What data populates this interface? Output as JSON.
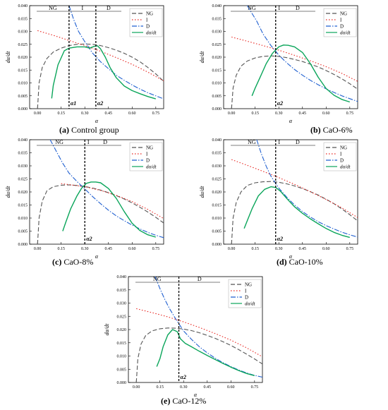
{
  "colors": {
    "ng": "#555555",
    "i": "#e8241f",
    "d": "#1f5fd0",
    "rate": "#0aa55a"
  },
  "panels": [
    {
      "caption_letter": "(a)",
      "caption_text": "Control group",
      "alpha_labels": [
        "α1",
        "α2"
      ]
    },
    {
      "caption_letter": "(b)",
      "caption_text": "CaO-6%",
      "alpha_labels": [
        "α2"
      ]
    },
    {
      "caption_letter": "(c)",
      "caption_text": "CaO-8%",
      "alpha_labels": [
        "α2"
      ]
    },
    {
      "caption_letter": "(d)",
      "caption_text": "CaO-10%",
      "alpha_labels": [
        "α2"
      ]
    },
    {
      "caption_letter": "(e)",
      "caption_text": "CaO-12%",
      "alpha_labels": [
        "α2"
      ]
    }
  ],
  "chart_data": [
    {
      "type": "line",
      "xlabel": "α",
      "ylabel": "dα/dt",
      "xlim": [
        -0.05,
        0.8
      ],
      "ylim": [
        0,
        0.04
      ],
      "xticks": [
        "0.00",
        "0.15",
        "0.30",
        "0.45",
        "0.60",
        "0.75"
      ],
      "yticks": [
        "0.000",
        "0.005",
        "0.010",
        "0.015",
        "0.020",
        "0.025",
        "0.030",
        "0.035",
        "0.040"
      ],
      "regions": [
        "NG",
        "I",
        "D"
      ],
      "dividers": [
        0.2,
        0.37
      ],
      "series": [
        {
          "name": "NG",
          "x": [
            0.0,
            0.01,
            0.03,
            0.06,
            0.1,
            0.15,
            0.2,
            0.25,
            0.3,
            0.35,
            0.4,
            0.45,
            0.5,
            0.55,
            0.6,
            0.65,
            0.7,
            0.75,
            0.8
          ],
          "y": [
            0.0,
            0.01,
            0.016,
            0.0195,
            0.022,
            0.0235,
            0.0245,
            0.025,
            0.0251,
            0.025,
            0.0245,
            0.0237,
            0.0227,
            0.0215,
            0.02,
            0.0182,
            0.016,
            0.0135,
            0.0106
          ]
        },
        {
          "name": "I",
          "x": [
            0.0,
            0.1,
            0.2,
            0.3,
            0.4,
            0.5,
            0.6,
            0.7,
            0.8
          ],
          "y": [
            0.0303,
            0.0285,
            0.0265,
            0.0245,
            0.0223,
            0.0198,
            0.0172,
            0.0142,
            0.0108
          ]
        },
        {
          "name": "D",
          "x": [
            0.2,
            0.23,
            0.26,
            0.3,
            0.35,
            0.4,
            0.45,
            0.5,
            0.55,
            0.6,
            0.65,
            0.7,
            0.75,
            0.8
          ],
          "y": [
            0.04,
            0.0345,
            0.03,
            0.026,
            0.0215,
            0.0182,
            0.0155,
            0.013,
            0.011,
            0.0092,
            0.0076,
            0.0062,
            0.005,
            0.0038
          ]
        },
        {
          "name": "dα/dt",
          "x": [
            0.09,
            0.1,
            0.13,
            0.17,
            0.2,
            0.25,
            0.3,
            0.33,
            0.36,
            0.38,
            0.4,
            0.43,
            0.46,
            0.5,
            0.55,
            0.6,
            0.65,
            0.7,
            0.75
          ],
          "y": [
            0.004,
            0.009,
            0.017,
            0.0225,
            0.0235,
            0.024,
            0.024,
            0.0235,
            0.0242,
            0.0244,
            0.0232,
            0.02,
            0.016,
            0.012,
            0.0088,
            0.007,
            0.0058,
            0.0047,
            0.0038
          ]
        }
      ]
    },
    {
      "type": "line",
      "xlabel": "α",
      "ylabel": "dα/dt",
      "xlim": [
        -0.05,
        0.8
      ],
      "ylim": [
        0,
        0.04
      ],
      "xticks": [
        "0.00",
        "0.15",
        "0.30",
        "0.45",
        "0.60",
        "0.75"
      ],
      "yticks": [
        "0.000",
        "0.005",
        "0.010",
        "0.015",
        "0.020",
        "0.025",
        "0.030",
        "0.035",
        "0.040"
      ],
      "regions": [
        "NG",
        "I",
        "D"
      ],
      "dividers": [
        0.28
      ],
      "series": [
        {
          "name": "NG",
          "x": [
            0.0,
            0.01,
            0.03,
            0.06,
            0.1,
            0.15,
            0.2,
            0.25,
            0.3,
            0.35,
            0.4,
            0.45,
            0.5,
            0.55,
            0.6,
            0.65,
            0.7,
            0.75,
            0.8
          ],
          "y": [
            0.0,
            0.008,
            0.013,
            0.0165,
            0.0185,
            0.0197,
            0.0203,
            0.0205,
            0.0203,
            0.0198,
            0.0191,
            0.0183,
            0.0173,
            0.0162,
            0.0148,
            0.0133,
            0.0116,
            0.0097,
            0.0076
          ]
        },
        {
          "name": "I",
          "x": [
            0.0,
            0.1,
            0.2,
            0.3,
            0.4,
            0.5,
            0.6,
            0.7,
            0.8
          ],
          "y": [
            0.0278,
            0.0262,
            0.0245,
            0.0227,
            0.0207,
            0.0186,
            0.0163,
            0.0137,
            0.0106
          ]
        },
        {
          "name": "D",
          "x": [
            0.1,
            0.13,
            0.16,
            0.2,
            0.25,
            0.3,
            0.35,
            0.4,
            0.45,
            0.5,
            0.55,
            0.6,
            0.65,
            0.7,
            0.75,
            0.8
          ],
          "y": [
            0.04,
            0.037,
            0.034,
            0.029,
            0.0245,
            0.0208,
            0.0178,
            0.0152,
            0.013,
            0.011,
            0.0093,
            0.0077,
            0.0063,
            0.005,
            0.0039,
            0.0028
          ]
        },
        {
          "name": "dα/dt",
          "x": [
            0.13,
            0.15,
            0.18,
            0.22,
            0.26,
            0.3,
            0.33,
            0.36,
            0.4,
            0.45,
            0.5,
            0.55,
            0.6,
            0.65,
            0.7,
            0.75
          ],
          "y": [
            0.005,
            0.008,
            0.012,
            0.0175,
            0.0215,
            0.024,
            0.0247,
            0.0246,
            0.024,
            0.0218,
            0.0175,
            0.0122,
            0.0078,
            0.0052,
            0.0036,
            0.0026
          ]
        }
      ]
    },
    {
      "type": "line",
      "xlabel": "α",
      "ylabel": "dα/dt",
      "xlim": [
        -0.05,
        0.8
      ],
      "ylim": [
        0,
        0.04
      ],
      "xticks": [
        "0.00",
        "0.15",
        "0.30",
        "0.45",
        "0.60",
        "0.75"
      ],
      "yticks": [
        "0.000",
        "0.005",
        "0.010",
        "0.015",
        "0.020",
        "0.025",
        "0.030",
        "0.035",
        "0.040"
      ],
      "regions": [
        "NG",
        "I",
        "D"
      ],
      "dividers": [
        0.3
      ],
      "series": [
        {
          "name": "NG",
          "x": [
            0.0,
            0.01,
            0.03,
            0.06,
            0.1,
            0.15,
            0.2,
            0.25,
            0.3,
            0.35,
            0.4,
            0.45,
            0.5,
            0.55,
            0.6,
            0.65,
            0.7,
            0.75,
            0.8
          ],
          "y": [
            0.0,
            0.01,
            0.0165,
            0.0205,
            0.022,
            0.0226,
            0.0227,
            0.0225,
            0.0221,
            0.0215,
            0.0207,
            0.0197,
            0.0186,
            0.0173,
            0.0158,
            0.0141,
            0.0123,
            0.0103,
            0.0081
          ]
        },
        {
          "name": "I",
          "x": [
            0.15,
            0.2,
            0.3,
            0.4,
            0.5,
            0.6,
            0.7,
            0.8
          ],
          "y": [
            0.0232,
            0.0228,
            0.022,
            0.0206,
            0.0187,
            0.0163,
            0.0133,
            0.0098
          ]
        },
        {
          "name": "D",
          "x": [
            0.08,
            0.12,
            0.16,
            0.2,
            0.25,
            0.3,
            0.35,
            0.4,
            0.45,
            0.5,
            0.55,
            0.6,
            0.65,
            0.7,
            0.75,
            0.8
          ],
          "y": [
            0.04,
            0.0355,
            0.031,
            0.0272,
            0.024,
            0.0212,
            0.0182,
            0.0155,
            0.013,
            0.0108,
            0.009,
            0.0073,
            0.0058,
            0.0045,
            0.0034,
            0.0025
          ]
        },
        {
          "name": "dα/dt",
          "x": [
            0.16,
            0.18,
            0.21,
            0.25,
            0.28,
            0.31,
            0.34,
            0.37,
            0.4,
            0.45,
            0.5,
            0.55,
            0.6,
            0.65,
            0.7,
            0.75
          ],
          "y": [
            0.005,
            0.0085,
            0.0135,
            0.0185,
            0.0215,
            0.0233,
            0.0238,
            0.0238,
            0.0235,
            0.0213,
            0.0175,
            0.0125,
            0.008,
            0.0052,
            0.0036,
            0.0027
          ]
        }
      ]
    },
    {
      "type": "line",
      "xlabel": "α",
      "ylabel": "dα/dt",
      "xlim": [
        -0.05,
        0.8
      ],
      "ylim": [
        0,
        0.04
      ],
      "xticks": [
        "0.00",
        "0.15",
        "0.30",
        "0.45",
        "0.60",
        "0.75"
      ],
      "yticks": [
        "0.000",
        "0.005",
        "0.010",
        "0.015",
        "0.020",
        "0.025",
        "0.030",
        "0.035",
        "0.040"
      ],
      "regions": [
        "NG",
        "I",
        "D"
      ],
      "dividers": [
        0.28
      ],
      "series": [
        {
          "name": "NG",
          "x": [
            0.0,
            0.01,
            0.03,
            0.06,
            0.1,
            0.15,
            0.2,
            0.25,
            0.3,
            0.35,
            0.4,
            0.45,
            0.5,
            0.55,
            0.6,
            0.65,
            0.7,
            0.75,
            0.8
          ],
          "y": [
            0.0,
            0.01,
            0.016,
            0.02,
            0.0225,
            0.0235,
            0.0239,
            0.024,
            0.0237,
            0.0231,
            0.0223,
            0.0213,
            0.0201,
            0.0188,
            0.0172,
            0.0155,
            0.0135,
            0.0113,
            0.0089
          ]
        },
        {
          "name": "I",
          "x": [
            0.0,
            0.1,
            0.2,
            0.3,
            0.4,
            0.5,
            0.6,
            0.7,
            0.8
          ],
          "y": [
            0.0324,
            0.0302,
            0.0279,
            0.0255,
            0.0229,
            0.0201,
            0.0171,
            0.0139,
            0.0102
          ]
        },
        {
          "name": "D",
          "x": [
            0.16,
            0.19,
            0.22,
            0.25,
            0.3,
            0.35,
            0.4,
            0.45,
            0.5,
            0.55,
            0.6,
            0.65,
            0.7,
            0.75,
            0.8
          ],
          "y": [
            0.04,
            0.0345,
            0.0298,
            0.026,
            0.0215,
            0.018,
            0.015,
            0.0125,
            0.0104,
            0.0086,
            0.0071,
            0.0058,
            0.0046,
            0.0036,
            0.0027
          ]
        },
        {
          "name": "dα/dt",
          "x": [
            0.08,
            0.1,
            0.13,
            0.17,
            0.21,
            0.25,
            0.28,
            0.31,
            0.35,
            0.4,
            0.45,
            0.5,
            0.55,
            0.6,
            0.65,
            0.7,
            0.75
          ],
          "y": [
            0.006,
            0.009,
            0.0135,
            0.0185,
            0.021,
            0.022,
            0.0217,
            0.0203,
            0.0175,
            0.0143,
            0.0118,
            0.0097,
            0.0078,
            0.006,
            0.0045,
            0.0034,
            0.0026
          ]
        }
      ]
    },
    {
      "type": "line",
      "xlabel": "α",
      "ylabel": "dα/dt",
      "xlim": [
        -0.05,
        0.8
      ],
      "ylim": [
        0,
        0.04
      ],
      "xticks": [
        "0.00",
        "0.15",
        "0.30",
        "0.45",
        "0.60",
        "0.75"
      ],
      "yticks": [
        "0.000",
        "0.005",
        "0.010",
        "0.015",
        "0.020",
        "0.025",
        "0.030",
        "0.035",
        "0.040"
      ],
      "regions": [
        "NG",
        "D"
      ],
      "dividers": [
        0.27
      ],
      "series": [
        {
          "name": "NG",
          "x": [
            0.0,
            0.01,
            0.03,
            0.06,
            0.1,
            0.15,
            0.2,
            0.25,
            0.3,
            0.35,
            0.4,
            0.45,
            0.5,
            0.55,
            0.6,
            0.65,
            0.7,
            0.75,
            0.8
          ],
          "y": [
            0.0,
            0.009,
            0.0145,
            0.0178,
            0.0195,
            0.0203,
            0.0206,
            0.0205,
            0.0202,
            0.0196,
            0.0188,
            0.0178,
            0.0167,
            0.0154,
            0.014,
            0.0124,
            0.0107,
            0.0089,
            0.007
          ]
        },
        {
          "name": "I",
          "x": [
            0.0,
            0.1,
            0.2,
            0.3,
            0.4,
            0.5,
            0.6,
            0.7,
            0.8
          ],
          "y": [
            0.0279,
            0.0264,
            0.0248,
            0.0229,
            0.0208,
            0.0185,
            0.016,
            0.0131,
            0.0097
          ]
        },
        {
          "name": "D",
          "x": [
            0.12,
            0.15,
            0.18,
            0.21,
            0.25,
            0.3,
            0.35,
            0.4,
            0.45,
            0.5,
            0.55,
            0.6,
            0.65,
            0.7,
            0.75,
            0.8
          ],
          "y": [
            0.04,
            0.0355,
            0.0315,
            0.028,
            0.024,
            0.0195,
            0.0163,
            0.0135,
            0.0112,
            0.0092,
            0.0075,
            0.006,
            0.0047,
            0.0036,
            0.0027,
            0.002
          ]
        },
        {
          "name": "dα/dt",
          "x": [
            0.13,
            0.15,
            0.17,
            0.2,
            0.23,
            0.26,
            0.28,
            0.31,
            0.35,
            0.4,
            0.45,
            0.5,
            0.55,
            0.6,
            0.65,
            0.7,
            0.75
          ],
          "y": [
            0.006,
            0.009,
            0.0135,
            0.018,
            0.02,
            0.0192,
            0.0165,
            0.0148,
            0.0135,
            0.0118,
            0.0102,
            0.0087,
            0.0072,
            0.0058,
            0.0045,
            0.0034,
            0.0026
          ]
        }
      ]
    }
  ]
}
